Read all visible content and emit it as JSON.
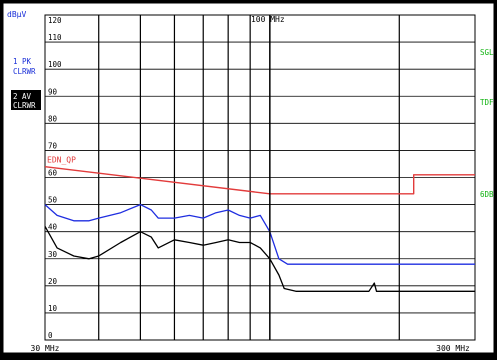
{
  "screen": {
    "unit_label": "dBµV",
    "marker_label": "100 MHz",
    "trace_labels": [
      {
        "id": "pk",
        "lines": [
          "1 PK",
          "CLRWR"
        ]
      },
      {
        "id": "av",
        "lines": [
          "2 AV",
          "CLRWR"
        ]
      }
    ],
    "right_labels": [
      "SGL",
      "TDF",
      "6DB"
    ],
    "limit_line_name": "EDN_QP"
  },
  "chart_data": {
    "type": "line",
    "title": "",
    "xlabel": "",
    "ylabel": "dBµV",
    "x_scale": "log",
    "xlim": [
      30,
      300
    ],
    "x_unit": "MHz",
    "x_tick_labels": [
      "30 MHz",
      "300 MHz"
    ],
    "ylim": [
      0,
      120
    ],
    "y_ticks": [
      0,
      10,
      20,
      30,
      40,
      50,
      60,
      70,
      80,
      90,
      100,
      110,
      120
    ],
    "grid": true,
    "marker": {
      "x": 100,
      "label": "100 MHz"
    },
    "colors": {
      "background": "#ffffff",
      "grid": "#000000",
      "limit": "#e23b3b",
      "peak": "#1f2ee0",
      "average": "#000000",
      "labels_blue": "#1a2fd8",
      "labels_green": "#12b312"
    },
    "series": [
      {
        "name": "EDN_QP",
        "role": "limit",
        "points": [
          [
            30,
            64
          ],
          [
            100,
            54
          ],
          [
            216,
            54
          ],
          [
            216,
            61
          ],
          [
            300,
            61
          ]
        ]
      },
      {
        "name": "1 PK",
        "role": "peak",
        "points": [
          [
            30,
            50
          ],
          [
            32,
            46
          ],
          [
            35,
            44
          ],
          [
            38,
            44
          ],
          [
            40,
            45
          ],
          [
            45,
            47
          ],
          [
            50,
            50
          ],
          [
            53,
            48
          ],
          [
            55,
            45
          ],
          [
            60,
            45
          ],
          [
            65,
            46
          ],
          [
            70,
            45
          ],
          [
            75,
            47
          ],
          [
            80,
            48
          ],
          [
            85,
            46
          ],
          [
            90,
            45
          ],
          [
            95,
            46
          ],
          [
            100,
            40
          ],
          [
            105,
            30
          ],
          [
            110,
            28
          ],
          [
            130,
            28
          ],
          [
            150,
            28
          ],
          [
            200,
            28
          ],
          [
            250,
            28
          ],
          [
            300,
            28
          ]
        ]
      },
      {
        "name": "2 AV",
        "role": "average",
        "points": [
          [
            30,
            42
          ],
          [
            32,
            34
          ],
          [
            35,
            31
          ],
          [
            38,
            30
          ],
          [
            40,
            31
          ],
          [
            45,
            36
          ],
          [
            50,
            40
          ],
          [
            53,
            38
          ],
          [
            55,
            34
          ],
          [
            60,
            37
          ],
          [
            65,
            36
          ],
          [
            70,
            35
          ],
          [
            75,
            36
          ],
          [
            80,
            37
          ],
          [
            85,
            36
          ],
          [
            90,
            36
          ],
          [
            95,
            34
          ],
          [
            100,
            30
          ],
          [
            105,
            24
          ],
          [
            108,
            19
          ],
          [
            115,
            18
          ],
          [
            150,
            18
          ],
          [
            170,
            18
          ],
          [
            175,
            21
          ],
          [
            177,
            18
          ],
          [
            200,
            18
          ],
          [
            250,
            18
          ],
          [
            300,
            18
          ]
        ]
      }
    ]
  }
}
